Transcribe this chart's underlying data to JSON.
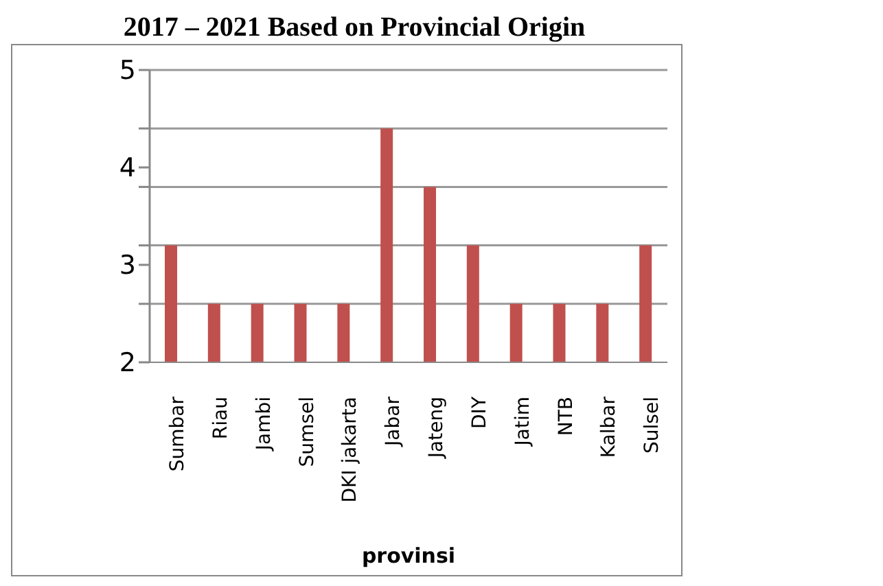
{
  "chart_data": {
    "type": "bar",
    "title": "2017 – 2021 Based on Provincial Origin",
    "xlabel": "provinsi",
    "categories": [
      "Sumbar",
      "Riau",
      "Jambi",
      "Sumsel",
      "DKI jakarta",
      "Jabar",
      "Jateng",
      "DIY",
      "Jatim",
      "NTB",
      "Kalbar",
      "Sulsel"
    ],
    "values": [
      3.2,
      2.6,
      2.6,
      2.6,
      2.6,
      4.4,
      3.8,
      3.2,
      2.6,
      2.6,
      2.6,
      3.2
    ],
    "color": "#c0504d",
    "ylim": [
      2,
      5
    ],
    "yticks": [
      2,
      {
        "value": 2.6,
        "label": null
      },
      3,
      {
        "value": 3.2,
        "label": null
      },
      {
        "value": 3.8,
        "label": null
      },
      4,
      {
        "value": 4.4,
        "label": null
      },
      5
    ],
    "grid": "y"
  }
}
